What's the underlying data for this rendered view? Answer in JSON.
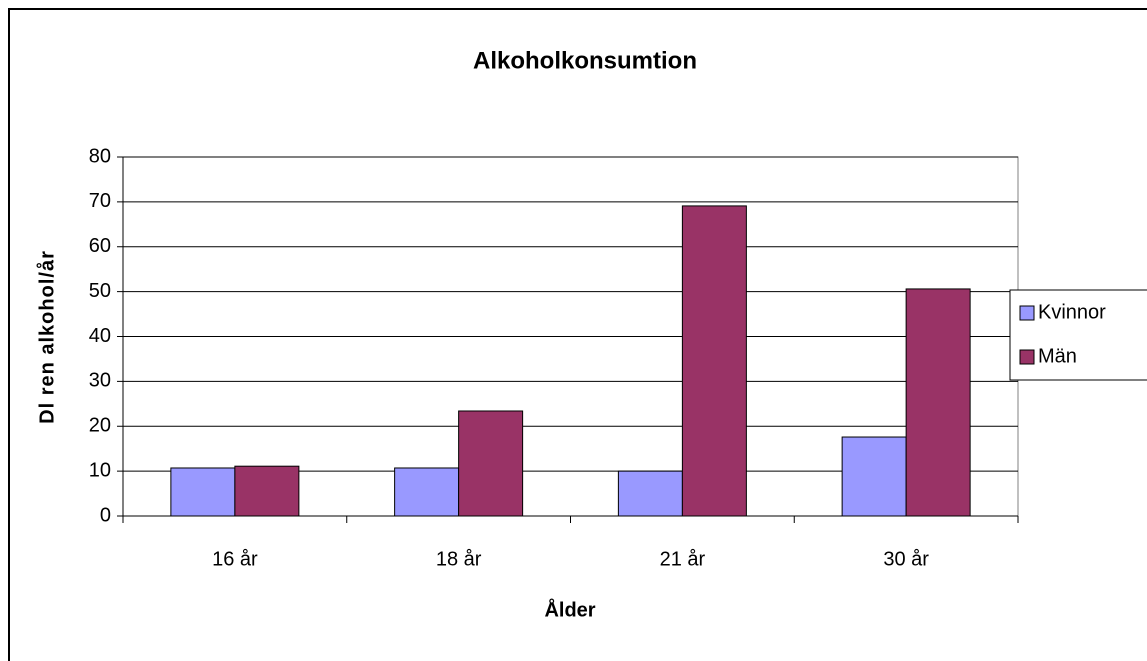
{
  "chart_data": {
    "type": "bar",
    "title": "Alkoholkonsumtion",
    "x_label": "Ålder",
    "y_label": "Dl ren alkohol/år",
    "categories": [
      "16 år",
      "18 år",
      "21 år",
      "30 år"
    ],
    "series": [
      {
        "name": "Kvinnor",
        "color": "#9999ff",
        "values": [
          10.7,
          10.7,
          10.0,
          17.6
        ]
      },
      {
        "name": "Män",
        "color": "#993366",
        "values": [
          11.1,
          23.4,
          69.1,
          50.6
        ]
      }
    ],
    "ylim": [
      0,
      80
    ],
    "yticks": [
      0,
      10,
      20,
      30,
      40,
      50,
      60,
      70,
      80
    ],
    "grid": true,
    "legend": "right"
  }
}
